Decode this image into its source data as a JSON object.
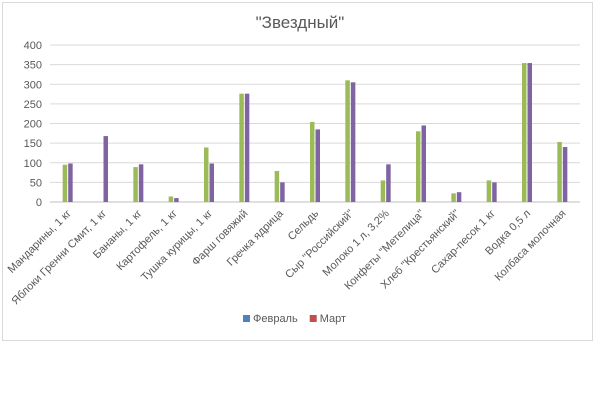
{
  "chart_data": {
    "type": "bar",
    "title": "\"Звездный\"",
    "categories": [
      "Мандарины, 1 кг",
      "Яблоки Гренни Смит, 1 кг",
      "Бананы, 1 кг",
      "Картофель, 1 кг",
      "Тушка курицы, 1 кг",
      "Фарш говяжий",
      "Гречка ядрица",
      "Сельдь",
      "Сыр \"Российский\"",
      "Молоко 1 л, 3,2%",
      "Конфеты \"Метелица\"",
      "Хлеб \"Крестьянский\"",
      "Сахар-песок 1 кг",
      "Водка 0,5 л",
      "Колбаса молочная"
    ],
    "series": [
      {
        "name": "Февраль",
        "color": "#9bbb59",
        "legend_color": "#4f81bd",
        "values": [
          95,
          0,
          89,
          14,
          139,
          276,
          79,
          204,
          310,
          55,
          180,
          22,
          55,
          354,
          153
        ]
      },
      {
        "name": "Март",
        "color": "#8064a2",
        "legend_color": "#c0504d",
        "values": [
          98,
          168,
          96,
          10,
          98,
          276,
          50,
          185,
          305,
          96,
          195,
          25,
          50,
          354,
          140
        ]
      }
    ],
    "yticks": [
      "0",
      "50",
      "100",
      "150",
      "200",
      "250",
      "300",
      "350",
      "400"
    ],
    "ylim": [
      0,
      400
    ],
    "grid": true,
    "legend_position": "bottom",
    "xlabel": "",
    "ylabel": ""
  }
}
